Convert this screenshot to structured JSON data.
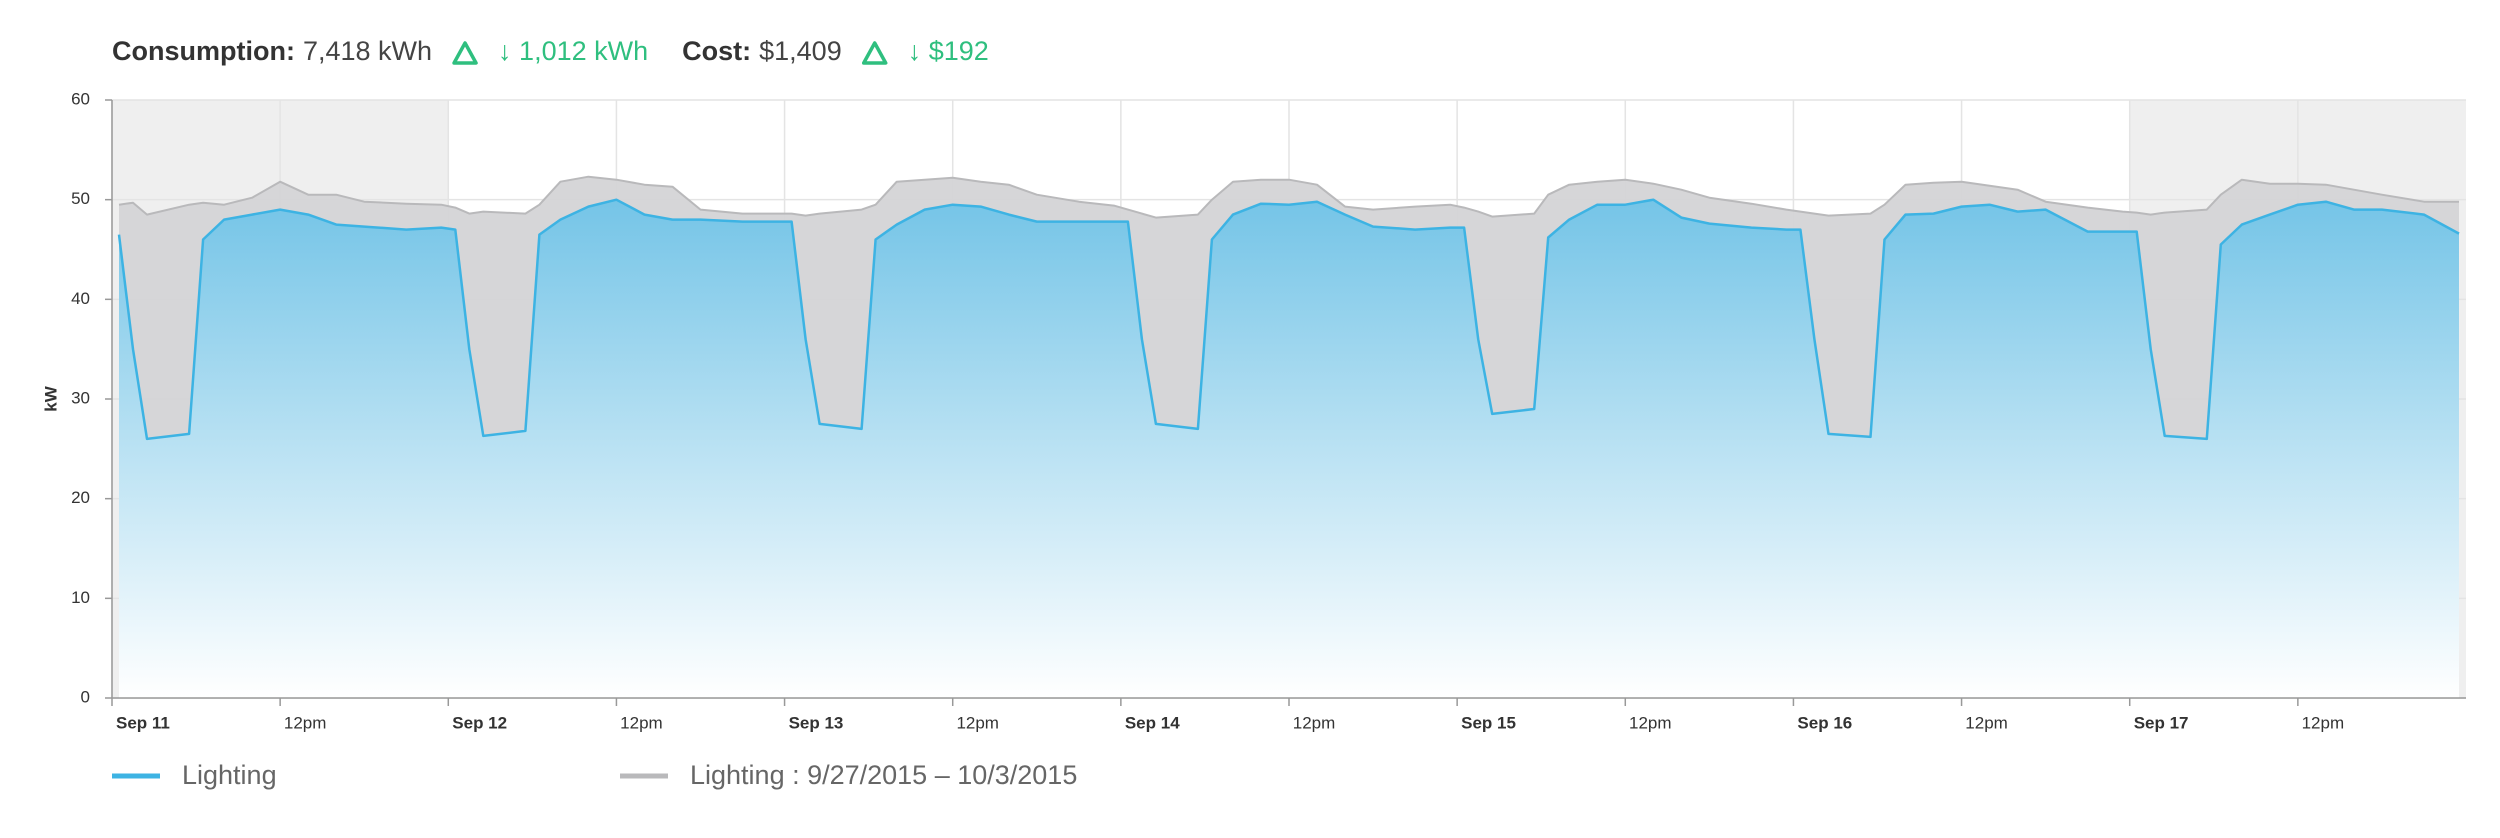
{
  "chart_data": {
    "type": "area",
    "summary": [
      {
        "label": "Consumption:",
        "value": "7,418 kWh",
        "change": "↓ 1,012 kWh"
      },
      {
        "label": "Cost:",
        "value": "$1,409",
        "change": "↓ $192"
      }
    ],
    "y_label": "kW",
    "xlim": [
      0,
      168
    ],
    "ylim": [
      0,
      60
    ],
    "yticks": [
      0,
      10,
      20,
      30,
      40,
      50,
      60
    ],
    "xticks": [
      {
        "value": 0,
        "label": "Sep 11"
      },
      {
        "value": 12,
        "label": "12pm"
      },
      {
        "value": 24,
        "label": "Sep 12"
      },
      {
        "value": 36,
        "label": "12pm"
      },
      {
        "value": 48,
        "label": "Sep 13"
      },
      {
        "value": 60,
        "label": "12pm"
      },
      {
        "value": 72,
        "label": "Sep 14"
      },
      {
        "value": 84,
        "label": "12pm"
      },
      {
        "value": 96,
        "label": "Sep 15"
      },
      {
        "value": 108,
        "label": "12pm"
      },
      {
        "value": 120,
        "label": "Sep 16"
      },
      {
        "value": 132,
        "label": "12pm"
      },
      {
        "value": 144,
        "label": "Sep 17"
      },
      {
        "value": 156,
        "label": "12pm"
      }
    ],
    "grid": true,
    "x": [
      0.5,
      1.5,
      2.5,
      5.5,
      6.5,
      8,
      10,
      12,
      14,
      16,
      18,
      21,
      23.5,
      24.5,
      25.5,
      26.5,
      29.5,
      30.5,
      32,
      34,
      36,
      38,
      40,
      42,
      45,
      47.5,
      48.5,
      49.5,
      50.5,
      53.5,
      54.5,
      56,
      58,
      60,
      62,
      64,
      66,
      69,
      71.5,
      72.5,
      73.5,
      74.5,
      77.5,
      78.5,
      80,
      82,
      84,
      86,
      88,
      90,
      93,
      95.5,
      96.5,
      97.5,
      98.5,
      101.5,
      102.5,
      104,
      106,
      108,
      110,
      112,
      114,
      117,
      119.5,
      120.5,
      121.5,
      122.5,
      125.5,
      126.5,
      128,
      130,
      132,
      134,
      136,
      138,
      141,
      143.5,
      144.5,
      145.5,
      146.5,
      149.5,
      150.5,
      152,
      154,
      156,
      158,
      160,
      162,
      165,
      167.5
    ],
    "series": [
      {
        "name": "Lighting : 9/27/2015 – 10/3/2015",
        "color": "#b9b9bb",
        "values": [
          49.5,
          49.7,
          48.5,
          49.5,
          49.7,
          49.5,
          50.2,
          51.8,
          50.5,
          50.5,
          49.8,
          49.6,
          49.5,
          49.2,
          48.6,
          48.8,
          48.6,
          49.5,
          51.8,
          52.3,
          52,
          51.5,
          51.3,
          49,
          48.6,
          48.6,
          48.6,
          48.4,
          48.6,
          49,
          49.5,
          51.8,
          52,
          52.2,
          51.8,
          51.5,
          50.5,
          49.8,
          49.4,
          49,
          48.6,
          48.2,
          48.5,
          50,
          51.8,
          52,
          52,
          51.5,
          49.3,
          49,
          49.3,
          49.5,
          49.2,
          48.8,
          48.3,
          48.6,
          50.5,
          51.5,
          51.8,
          52,
          51.6,
          51,
          50.2,
          49.6,
          49,
          48.8,
          48.6,
          48.4,
          48.6,
          49.5,
          51.5,
          51.7,
          51.8,
          51.4,
          51,
          49.8,
          49.2,
          48.8,
          48.7,
          48.5,
          48.7,
          49,
          50.5,
          52,
          51.6,
          51.6,
          51.5,
          51,
          50.5,
          49.8,
          49.8
        ]
      },
      {
        "name": "Lighting",
        "color": "#3db3e3",
        "values": [
          46.5,
          35,
          26,
          26.5,
          46,
          48,
          48.5,
          49,
          48.5,
          47.5,
          47.3,
          47,
          47.2,
          47,
          35,
          26.3,
          26.8,
          46.5,
          48,
          49.3,
          50,
          48.5,
          48,
          48,
          47.8,
          47.8,
          47.8,
          36,
          27.5,
          27,
          46,
          47.5,
          49,
          49.5,
          49.3,
          48.5,
          47.8,
          47.8,
          47.8,
          47.8,
          36,
          27.5,
          27,
          46,
          48.5,
          49.6,
          49.5,
          49.8,
          48.5,
          47.3,
          47,
          47.2,
          47.2,
          36,
          28.5,
          29,
          46.2,
          48,
          49.5,
          49.5,
          50,
          48.2,
          47.6,
          47.2,
          47,
          47,
          36,
          26.5,
          26.2,
          46,
          48.5,
          48.6,
          49.3,
          49.5,
          48.8,
          49,
          46.8,
          46.8,
          46.8,
          35,
          26.3,
          26,
          45.5,
          47.5,
          48.5,
          49.5,
          49.8,
          49,
          49,
          48.5,
          46.6
        ]
      }
    ]
  }
}
